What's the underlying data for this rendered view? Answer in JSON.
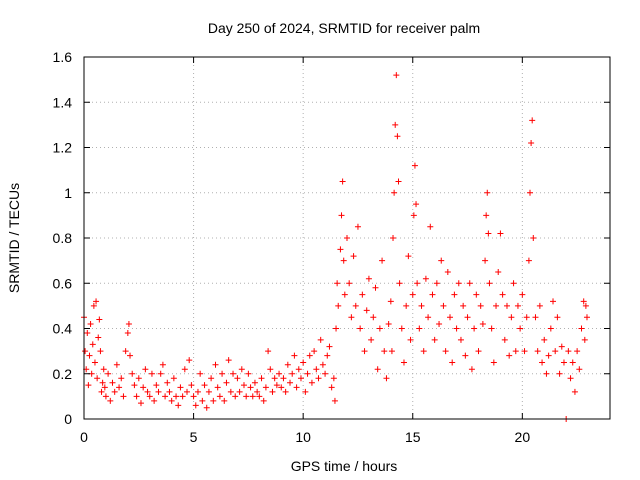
{
  "chart_data": {
    "type": "scatter",
    "title": "Day 250 of 2024, SRMTID for receiver palm",
    "xlabel": "GPS time / hours",
    "ylabel": "SRMTID / TECUs",
    "xlim": [
      0,
      24
    ],
    "ylim": [
      0,
      1.6
    ],
    "xticks": [
      0,
      5,
      10,
      15,
      20
    ],
    "xtick_labels": [
      "0",
      "5",
      "10",
      "15",
      "20"
    ],
    "yticks": [
      0,
      0.2,
      0.4,
      0.6,
      0.8,
      1.0,
      1.2,
      1.4,
      1.6
    ],
    "ytick_labels": [
      "0",
      "0.2",
      "0.4",
      "0.6",
      "0.8",
      "1",
      "1.2",
      "1.4",
      "1.6"
    ],
    "grid": true,
    "marker": "+",
    "color": "#ff0000",
    "series": [
      {
        "name": "SRMTID",
        "points": [
          [
            0.0,
            0.45
          ],
          [
            0.05,
            0.3
          ],
          [
            0.1,
            0.22
          ],
          [
            0.15,
            0.38
          ],
          [
            0.2,
            0.15
          ],
          [
            0.25,
            0.28
          ],
          [
            0.3,
            0.42
          ],
          [
            0.35,
            0.2
          ],
          [
            0.4,
            0.33
          ],
          [
            0.45,
            0.5
          ],
          [
            0.5,
            0.25
          ],
          [
            0.55,
            0.52
          ],
          [
            0.6,
            0.18
          ],
          [
            0.65,
            0.36
          ],
          [
            0.7,
            0.44
          ],
          [
            0.75,
            0.3
          ],
          [
            0.8,
            0.12
          ],
          [
            0.85,
            0.16
          ],
          [
            0.9,
            0.22
          ],
          [
            0.95,
            0.14
          ],
          [
            1.0,
            0.1
          ],
          [
            1.1,
            0.2
          ],
          [
            1.2,
            0.08
          ],
          [
            1.3,
            0.16
          ],
          [
            1.4,
            0.12
          ],
          [
            1.5,
            0.24
          ],
          [
            1.6,
            0.14
          ],
          [
            1.7,
            0.18
          ],
          [
            1.8,
            0.1
          ],
          [
            1.9,
            0.3
          ],
          [
            2.0,
            0.38
          ],
          [
            2.05,
            0.42
          ],
          [
            2.1,
            0.28
          ],
          [
            2.2,
            0.2
          ],
          [
            2.3,
            0.15
          ],
          [
            2.4,
            0.1
          ],
          [
            2.5,
            0.18
          ],
          [
            2.6,
            0.07
          ],
          [
            2.7,
            0.14
          ],
          [
            2.8,
            0.22
          ],
          [
            2.9,
            0.12
          ],
          [
            3.0,
            0.1
          ],
          [
            3.1,
            0.2
          ],
          [
            3.2,
            0.08
          ],
          [
            3.3,
            0.15
          ],
          [
            3.4,
            0.12
          ],
          [
            3.5,
            0.2
          ],
          [
            3.6,
            0.24
          ],
          [
            3.7,
            0.1
          ],
          [
            3.8,
            0.16
          ],
          [
            3.9,
            0.12
          ],
          [
            4.0,
            0.08
          ],
          [
            4.1,
            0.18
          ],
          [
            4.2,
            0.1
          ],
          [
            4.3,
            0.06
          ],
          [
            4.4,
            0.14
          ],
          [
            4.5,
            0.1
          ],
          [
            4.6,
            0.22
          ],
          [
            4.7,
            0.12
          ],
          [
            4.8,
            0.26
          ],
          [
            4.9,
            0.15
          ],
          [
            5.0,
            0.1
          ],
          [
            5.1,
            0.06
          ],
          [
            5.2,
            0.12
          ],
          [
            5.3,
            0.2
          ],
          [
            5.4,
            0.08
          ],
          [
            5.5,
            0.15
          ],
          [
            5.6,
            0.05
          ],
          [
            5.7,
            0.12
          ],
          [
            5.8,
            0.18
          ],
          [
            5.9,
            0.08
          ],
          [
            6.0,
            0.24
          ],
          [
            6.1,
            0.14
          ],
          [
            6.2,
            0.1
          ],
          [
            6.3,
            0.2
          ],
          [
            6.4,
            0.08
          ],
          [
            6.5,
            0.16
          ],
          [
            6.6,
            0.26
          ],
          [
            6.7,
            0.12
          ],
          [
            6.8,
            0.2
          ],
          [
            6.9,
            0.1
          ],
          [
            7.0,
            0.18
          ],
          [
            7.1,
            0.12
          ],
          [
            7.2,
            0.22
          ],
          [
            7.3,
            0.15
          ],
          [
            7.4,
            0.1
          ],
          [
            7.5,
            0.2
          ],
          [
            7.6,
            0.14
          ],
          [
            7.7,
            0.1
          ],
          [
            7.8,
            0.16
          ],
          [
            7.9,
            0.12
          ],
          [
            8.0,
            0.1
          ],
          [
            8.1,
            0.18
          ],
          [
            8.2,
            0.08
          ],
          [
            8.3,
            0.14
          ],
          [
            8.4,
            0.3
          ],
          [
            8.5,
            0.22
          ],
          [
            8.6,
            0.12
          ],
          [
            8.7,
            0.18
          ],
          [
            8.8,
            0.15
          ],
          [
            8.9,
            0.2
          ],
          [
            9.0,
            0.14
          ],
          [
            9.1,
            0.18
          ],
          [
            9.2,
            0.12
          ],
          [
            9.3,
            0.24
          ],
          [
            9.4,
            0.16
          ],
          [
            9.5,
            0.2
          ],
          [
            9.6,
            0.28
          ],
          [
            9.7,
            0.14
          ],
          [
            9.8,
            0.22
          ],
          [
            9.9,
            0.18
          ],
          [
            10.0,
            0.25
          ],
          [
            10.1,
            0.12
          ],
          [
            10.2,
            0.2
          ],
          [
            10.3,
            0.28
          ],
          [
            10.4,
            0.16
          ],
          [
            10.5,
            0.3
          ],
          [
            10.6,
            0.22
          ],
          [
            10.7,
            0.18
          ],
          [
            10.8,
            0.35
          ],
          [
            10.9,
            0.24
          ],
          [
            11.0,
            0.2
          ],
          [
            11.1,
            0.28
          ],
          [
            11.2,
            0.32
          ],
          [
            11.3,
            0.14
          ],
          [
            11.4,
            0.18
          ],
          [
            11.45,
            0.08
          ],
          [
            11.5,
            0.4
          ],
          [
            11.55,
            0.6
          ],
          [
            11.6,
            0.5
          ],
          [
            11.7,
            0.75
          ],
          [
            11.75,
            0.9
          ],
          [
            11.8,
            1.05
          ],
          [
            11.85,
            0.7
          ],
          [
            11.9,
            0.55
          ],
          [
            12.0,
            0.8
          ],
          [
            12.1,
            0.6
          ],
          [
            12.2,
            0.45
          ],
          [
            12.3,
            0.72
          ],
          [
            12.4,
            0.5
          ],
          [
            12.5,
            0.85
          ],
          [
            12.6,
            0.4
          ],
          [
            12.7,
            0.55
          ],
          [
            12.8,
            0.3
          ],
          [
            12.9,
            0.48
          ],
          [
            13.0,
            0.62
          ],
          [
            13.1,
            0.35
          ],
          [
            13.2,
            0.45
          ],
          [
            13.3,
            0.58
          ],
          [
            13.4,
            0.22
          ],
          [
            13.5,
            0.4
          ],
          [
            13.6,
            0.7
          ],
          [
            13.7,
            0.3
          ],
          [
            13.8,
            0.18
          ],
          [
            13.9,
            0.42
          ],
          [
            14.0,
            0.52
          ],
          [
            14.05,
            0.3
          ],
          [
            14.1,
            0.8
          ],
          [
            14.15,
            1.0
          ],
          [
            14.2,
            1.3
          ],
          [
            14.25,
            1.52
          ],
          [
            14.3,
            1.25
          ],
          [
            14.35,
            1.05
          ],
          [
            14.4,
            0.6
          ],
          [
            14.5,
            0.4
          ],
          [
            14.6,
            0.25
          ],
          [
            14.7,
            0.5
          ],
          [
            14.8,
            0.72
          ],
          [
            14.9,
            0.35
          ],
          [
            15.0,
            0.55
          ],
          [
            15.05,
            0.9
          ],
          [
            15.1,
            1.12
          ],
          [
            15.15,
            0.95
          ],
          [
            15.2,
            0.6
          ],
          [
            15.3,
            0.4
          ],
          [
            15.4,
            0.5
          ],
          [
            15.5,
            0.3
          ],
          [
            15.6,
            0.62
          ],
          [
            15.7,
            0.45
          ],
          [
            15.8,
            0.85
          ],
          [
            15.9,
            0.55
          ],
          [
            16.0,
            0.35
          ],
          [
            16.1,
            0.6
          ],
          [
            16.2,
            0.42
          ],
          [
            16.3,
            0.7
          ],
          [
            16.4,
            0.5
          ],
          [
            16.5,
            0.3
          ],
          [
            16.6,
            0.65
          ],
          [
            16.7,
            0.45
          ],
          [
            16.8,
            0.25
          ],
          [
            16.9,
            0.55
          ],
          [
            17.0,
            0.4
          ],
          [
            17.1,
            0.6
          ],
          [
            17.2,
            0.35
          ],
          [
            17.3,
            0.5
          ],
          [
            17.4,
            0.28
          ],
          [
            17.5,
            0.45
          ],
          [
            17.6,
            0.6
          ],
          [
            17.7,
            0.22
          ],
          [
            17.8,
            0.4
          ],
          [
            17.9,
            0.55
          ],
          [
            18.0,
            0.3
          ],
          [
            18.1,
            0.5
          ],
          [
            18.2,
            0.42
          ],
          [
            18.3,
            0.7
          ],
          [
            18.35,
            0.9
          ],
          [
            18.4,
            1.0
          ],
          [
            18.45,
            0.82
          ],
          [
            18.5,
            0.6
          ],
          [
            18.6,
            0.4
          ],
          [
            18.7,
            0.25
          ],
          [
            18.8,
            0.5
          ],
          [
            18.9,
            0.65
          ],
          [
            19.0,
            0.82
          ],
          [
            19.1,
            0.55
          ],
          [
            19.2,
            0.35
          ],
          [
            19.3,
            0.5
          ],
          [
            19.4,
            0.28
          ],
          [
            19.5,
            0.45
          ],
          [
            19.6,
            0.6
          ],
          [
            19.7,
            0.3
          ],
          [
            19.8,
            0.5
          ],
          [
            19.9,
            0.4
          ],
          [
            20.0,
            0.55
          ],
          [
            20.1,
            0.3
          ],
          [
            20.2,
            0.45
          ],
          [
            20.3,
            0.7
          ],
          [
            20.35,
            1.0
          ],
          [
            20.4,
            1.22
          ],
          [
            20.45,
            1.32
          ],
          [
            20.5,
            0.8
          ],
          [
            20.6,
            0.45
          ],
          [
            20.7,
            0.3
          ],
          [
            20.8,
            0.5
          ],
          [
            20.9,
            0.25
          ],
          [
            21.0,
            0.35
          ],
          [
            21.1,
            0.2
          ],
          [
            21.2,
            0.28
          ],
          [
            21.3,
            0.4
          ],
          [
            21.4,
            0.52
          ],
          [
            21.5,
            0.3
          ],
          [
            21.6,
            0.45
          ],
          [
            21.7,
            0.2
          ],
          [
            21.8,
            0.32
          ],
          [
            21.9,
            0.25
          ],
          [
            22.0,
            0.0
          ],
          [
            22.1,
            0.3
          ],
          [
            22.2,
            0.18
          ],
          [
            22.3,
            0.25
          ],
          [
            22.4,
            0.12
          ],
          [
            22.5,
            0.3
          ],
          [
            22.6,
            0.22
          ],
          [
            22.7,
            0.4
          ],
          [
            22.8,
            0.52
          ],
          [
            22.85,
            0.35
          ],
          [
            22.9,
            0.5
          ],
          [
            22.95,
            0.45
          ]
        ]
      }
    ]
  }
}
